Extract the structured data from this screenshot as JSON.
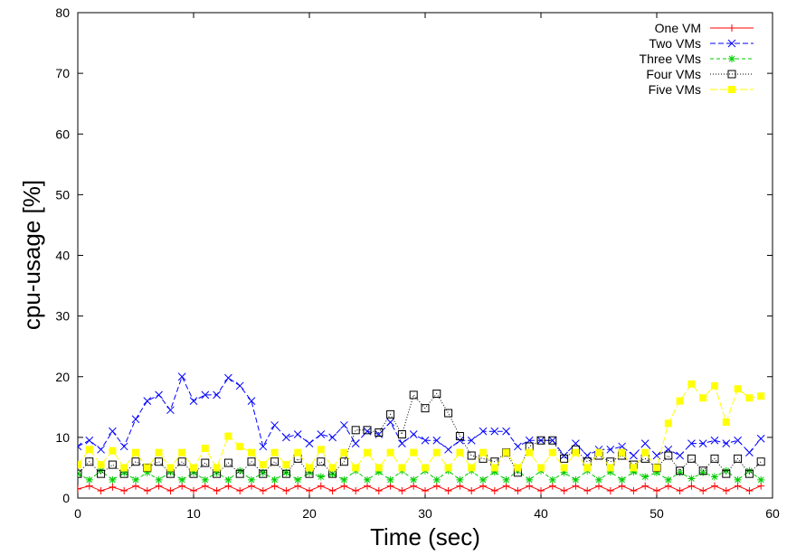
{
  "chart_data": {
    "type": "line",
    "title": "",
    "xlabel": "Time (sec)",
    "ylabel": "cpu-usage [%]",
    "xlim": [
      0,
      60
    ],
    "ylim": [
      0,
      80
    ],
    "xticks": [
      "0",
      "10",
      "20",
      "30",
      "40",
      "50",
      "60"
    ],
    "yticks": [
      "0",
      "10",
      "20",
      "30",
      "40",
      "50",
      "60",
      "70",
      "80"
    ],
    "grid": false,
    "legend_position": "top-right",
    "x": [
      0,
      1,
      2,
      3,
      4,
      5,
      6,
      7,
      8,
      9,
      10,
      11,
      12,
      13,
      14,
      15,
      16,
      17,
      18,
      19,
      20,
      21,
      22,
      23,
      24,
      25,
      26,
      27,
      28,
      29,
      30,
      31,
      32,
      33,
      34,
      35,
      36,
      37,
      38,
      39,
      40,
      41,
      42,
      43,
      44,
      45,
      46,
      47,
      48,
      49,
      50,
      51,
      52,
      53,
      54,
      55,
      56,
      57,
      58,
      59
    ],
    "series": [
      {
        "name": "One VM",
        "color": "#ff0000",
        "dash": "",
        "marker": "plus",
        "values": [
          1.5,
          2,
          1.2,
          1.8,
          1.2,
          2,
          1.2,
          2,
          1.2,
          2,
          1.2,
          2,
          1.2,
          2,
          1.2,
          2,
          1.2,
          2,
          1.2,
          2,
          1.2,
          2,
          1.2,
          2,
          1.2,
          2,
          1.2,
          2,
          1.2,
          2,
          1.2,
          2,
          1.2,
          2,
          1.2,
          2,
          1.2,
          2,
          1.2,
          2,
          1.2,
          2,
          1.2,
          2,
          1.2,
          2,
          1.2,
          2,
          1.2,
          2,
          1.2,
          2,
          1.2,
          2,
          1.2,
          2,
          1.2,
          2,
          1.2,
          2
        ]
      },
      {
        "name": "Two VMs",
        "color": "#0000ff",
        "dash": "6,3",
        "marker": "cross",
        "values": [
          8.5,
          9.5,
          8,
          11,
          8.5,
          13,
          16,
          17,
          14.5,
          20,
          16,
          17,
          17,
          19.8,
          18.5,
          16,
          8.5,
          12,
          10,
          10.5,
          9,
          10.5,
          10,
          12,
          9,
          11,
          10.5,
          12.5,
          9,
          10.5,
          9.5,
          9.5,
          8,
          9.5,
          9.5,
          11,
          11,
          11,
          8.5,
          9.5,
          9.5,
          9.5,
          7,
          9,
          7,
          8,
          8,
          8.5,
          7,
          9,
          7,
          8,
          7,
          9,
          9,
          9.5,
          9,
          9.5,
          7.5,
          9.8
        ]
      },
      {
        "name": "Three VMs",
        "color": "#00cc00",
        "dash": "4,3",
        "marker": "star",
        "values": [
          4,
          3,
          4.5,
          3,
          4.2,
          3,
          4.2,
          3,
          4.3,
          3,
          4.2,
          3,
          4.2,
          3,
          4.5,
          3,
          4.2,
          3,
          4.2,
          3,
          4.2,
          3.5,
          4,
          3,
          4.5,
          3,
          4.3,
          3,
          4.5,
          3,
          4.5,
          3,
          4.5,
          3,
          4.5,
          3,
          4.3,
          3,
          4.5,
          3,
          4.5,
          3,
          4.2,
          3,
          4.5,
          3,
          4.3,
          3,
          4.3,
          3.5,
          4.2,
          3,
          4.2,
          3.2,
          4.2,
          3.5,
          4.5,
          3,
          4.5,
          3
        ]
      },
      {
        "name": "Four VMs",
        "color": "#000000",
        "dash": "1,2",
        "marker": "square-open",
        "values": [
          4,
          6,
          4,
          5.5,
          4,
          6,
          5,
          6,
          4,
          6,
          4,
          5.8,
          4,
          5.8,
          4,
          6,
          4,
          6,
          4,
          6.5,
          4,
          6,
          4,
          6,
          11.2,
          11.2,
          10.8,
          13.8,
          10.5,
          17,
          14.8,
          17.2,
          14,
          10.2,
          7,
          6.5,
          6,
          7.5,
          4.2,
          8.5,
          9.5,
          9.5,
          6.5,
          8,
          6,
          7,
          6,
          7,
          5.5,
          6.5,
          5,
          7,
          4.5,
          6.5,
          4.5,
          6.5,
          4,
          6.5,
          4,
          6
        ]
      },
      {
        "name": "Five VMs",
        "color": "#ffff00",
        "dash": "8,3",
        "marker": "square-filled",
        "values": [
          5.5,
          8,
          5.5,
          7.8,
          5,
          7.5,
          5,
          7.5,
          5,
          7.5,
          5,
          8.2,
          5,
          10.2,
          8.5,
          7.5,
          5.5,
          7.5,
          5.5,
          7.5,
          5,
          8,
          5,
          7.5,
          5,
          7.5,
          5,
          7.5,
          5,
          7.5,
          5,
          7.5,
          5,
          7.5,
          5,
          7.5,
          5,
          7.5,
          5,
          7.5,
          5,
          7.5,
          5,
          7.5,
          5,
          7.5,
          5,
          7.5,
          5,
          7.5,
          5,
          12.3,
          16,
          18.8,
          16.5,
          18.5,
          12.5,
          18,
          16.5,
          16.8
        ]
      }
    ]
  }
}
